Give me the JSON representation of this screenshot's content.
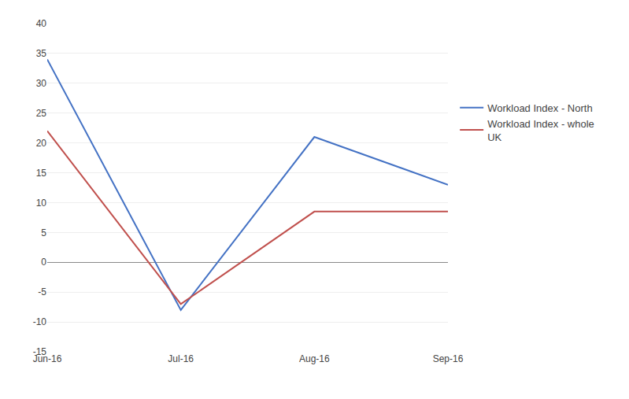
{
  "chart_data": {
    "type": "line",
    "categories": [
      "Jun-16",
      "Jul-16",
      "Aug-16",
      "Sep-16"
    ],
    "series": [
      {
        "name": "Workload Index - North",
        "color": "#4472C4",
        "values": [
          34,
          -8,
          21,
          13
        ]
      },
      {
        "name": "Workload Index - whole\nUK",
        "color": "#C0504D",
        "values": [
          22,
          -7,
          8.5,
          8.5
        ]
      }
    ],
    "ylim": [
      -15,
      40
    ],
    "yticks": [
      -15,
      -10,
      -5,
      0,
      5,
      10,
      15,
      20,
      25,
      30,
      35,
      40
    ],
    "grid": true,
    "legend": "right"
  }
}
